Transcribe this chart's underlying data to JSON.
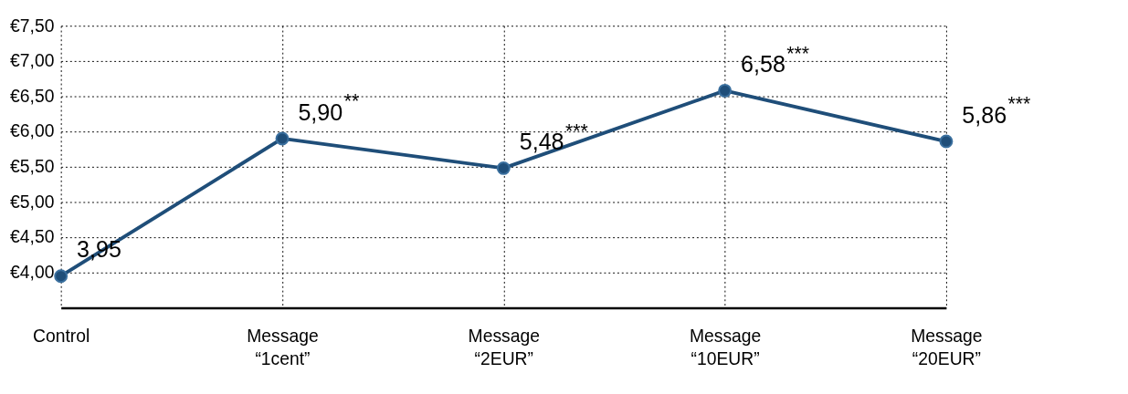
{
  "chart_data": {
    "type": "line",
    "categories": [
      "Control",
      "Message “1cent”",
      "Message “2EUR”",
      "Message “10EUR”",
      "Message “20EUR”"
    ],
    "series": [
      {
        "color": "#1f4e79",
        "values": [
          3.95,
          5.9,
          5.48,
          6.58,
          5.86
        ],
        "value_labels": [
          "3,95",
          "5,90$^{**}$",
          "5,48$^{***}$",
          "6,58$^{***}$",
          "5,86$^{***}$"
        ]
      }
    ],
    "ylim": [
      3.5,
      7.5
    ],
    "yticks": [
      {
        "value": 4.0,
        "label": "€4,00"
      },
      {
        "value": 4.5,
        "label": "€4,50"
      },
      {
        "value": 5.0,
        "label": "€5,00"
      },
      {
        "value": 5.5,
        "label": "€5,50"
      },
      {
        "value": 6.0,
        "label": "€6,00"
      },
      {
        "value": 6.5,
        "label": "€6,50"
      },
      {
        "value": 7.0,
        "label": "€7,00"
      },
      {
        "value": 7.5,
        "label": "€7,50"
      }
    ],
    "grid": true,
    "marker": "circle",
    "line_style": "solid"
  }
}
